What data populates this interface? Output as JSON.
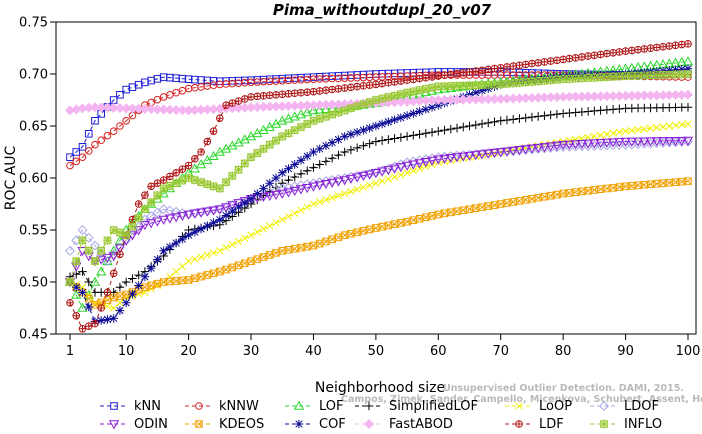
{
  "chart_data": {
    "type": "line",
    "title": "Pima_withoutdupl_20_v07",
    "xlabel": "Neighborhood size",
    "ylabel": "ROC AUC",
    "xlim": [
      1,
      100
    ],
    "ylim": [
      0.45,
      0.75
    ],
    "xticks": [
      1,
      10,
      20,
      30,
      40,
      50,
      60,
      70,
      80,
      90,
      100
    ],
    "yticks": [
      0.45,
      0.5,
      0.55,
      0.6,
      0.65,
      0.7,
      0.75
    ],
    "grid": false,
    "legend_position": "bottom",
    "watermark": [
      "Unsupervised Outlier Detection. DAMI, 2015.",
      "Campos, Zimek, Sander, Campello, Micenkova, Schubert, Assent, Houle"
    ],
    "series": [
      {
        "name": "kNN",
        "color": "#1f1fd6",
        "marker": "square",
        "points": [
          [
            1,
            0.62
          ],
          [
            3,
            0.63
          ],
          [
            5,
            0.655
          ],
          [
            8,
            0.675
          ],
          [
            10,
            0.685
          ],
          [
            13,
            0.692
          ],
          [
            16,
            0.697
          ],
          [
            20,
            0.695
          ],
          [
            25,
            0.693
          ],
          [
            30,
            0.694
          ],
          [
            40,
            0.697
          ],
          [
            50,
            0.7
          ],
          [
            60,
            0.702
          ],
          [
            70,
            0.702
          ],
          [
            80,
            0.7
          ],
          [
            90,
            0.699
          ],
          [
            100,
            0.7
          ]
        ]
      },
      {
        "name": "kNNW",
        "color": "#d62020",
        "marker": "circle",
        "points": [
          [
            1,
            0.612
          ],
          [
            3,
            0.62
          ],
          [
            5,
            0.632
          ],
          [
            8,
            0.645
          ],
          [
            10,
            0.655
          ],
          [
            13,
            0.67
          ],
          [
            16,
            0.678
          ],
          [
            20,
            0.686
          ],
          [
            25,
            0.69
          ],
          [
            30,
            0.692
          ],
          [
            40,
            0.695
          ],
          [
            50,
            0.697
          ],
          [
            60,
            0.699
          ],
          [
            70,
            0.699
          ],
          [
            80,
            0.699
          ],
          [
            90,
            0.698
          ],
          [
            100,
            0.697
          ]
        ]
      },
      {
        "name": "LOF",
        "color": "#2ad62a",
        "marker": "triangle",
        "points": [
          [
            1,
            0.5
          ],
          [
            3,
            0.475
          ],
          [
            5,
            0.5
          ],
          [
            7,
            0.52
          ],
          [
            10,
            0.55
          ],
          [
            13,
            0.57
          ],
          [
            16,
            0.585
          ],
          [
            20,
            0.605
          ],
          [
            25,
            0.625
          ],
          [
            30,
            0.64
          ],
          [
            35,
            0.655
          ],
          [
            40,
            0.665
          ],
          [
            45,
            0.668
          ],
          [
            50,
            0.672
          ],
          [
            60,
            0.685
          ],
          [
            70,
            0.692
          ],
          [
            80,
            0.698
          ],
          [
            90,
            0.705
          ],
          [
            100,
            0.712
          ]
        ]
      },
      {
        "name": "SimplifiedLOF",
        "color": "#000000",
        "marker": "plus",
        "points": [
          [
            1,
            0.505
          ],
          [
            3,
            0.51
          ],
          [
            5,
            0.49
          ],
          [
            8,
            0.49
          ],
          [
            10,
            0.5
          ],
          [
            13,
            0.51
          ],
          [
            16,
            0.525
          ],
          [
            20,
            0.55
          ],
          [
            25,
            0.555
          ],
          [
            30,
            0.575
          ],
          [
            35,
            0.595
          ],
          [
            40,
            0.61
          ],
          [
            45,
            0.625
          ],
          [
            50,
            0.635
          ],
          [
            55,
            0.64
          ],
          [
            60,
            0.645
          ],
          [
            70,
            0.655
          ],
          [
            80,
            0.662
          ],
          [
            90,
            0.667
          ],
          [
            100,
            0.668
          ]
        ]
      },
      {
        "name": "LoOP",
        "color": "#f0f000",
        "marker": "x",
        "points": [
          [
            1,
            0.5
          ],
          [
            3,
            0.495
          ],
          [
            5,
            0.48
          ],
          [
            8,
            0.475
          ],
          [
            10,
            0.485
          ],
          [
            13,
            0.49
          ],
          [
            16,
            0.5
          ],
          [
            20,
            0.52
          ],
          [
            25,
            0.53
          ],
          [
            30,
            0.545
          ],
          [
            35,
            0.56
          ],
          [
            40,
            0.575
          ],
          [
            45,
            0.585
          ],
          [
            50,
            0.595
          ],
          [
            55,
            0.605
          ],
          [
            60,
            0.615
          ],
          [
            70,
            0.625
          ],
          [
            80,
            0.635
          ],
          [
            90,
            0.645
          ],
          [
            100,
            0.652
          ]
        ]
      },
      {
        "name": "LDOF",
        "color": "#a8a8e6",
        "marker": "diamond",
        "points": [
          [
            1,
            0.53
          ],
          [
            3,
            0.55
          ],
          [
            5,
            0.535
          ],
          [
            7,
            0.52
          ],
          [
            10,
            0.54
          ],
          [
            13,
            0.56
          ],
          [
            16,
            0.57
          ],
          [
            20,
            0.565
          ],
          [
            25,
            0.57
          ],
          [
            30,
            0.58
          ],
          [
            35,
            0.59
          ],
          [
            40,
            0.595
          ],
          [
            45,
            0.6
          ],
          [
            50,
            0.605
          ],
          [
            55,
            0.615
          ],
          [
            60,
            0.62
          ],
          [
            70,
            0.625
          ],
          [
            80,
            0.63
          ],
          [
            90,
            0.632
          ],
          [
            100,
            0.635
          ]
        ]
      },
      {
        "name": "ODIN",
        "color": "#8a1ed6",
        "marker": "triangle-down",
        "points": [
          [
            1,
            0.5
          ],
          [
            3,
            0.53
          ],
          [
            5,
            0.52
          ],
          [
            8,
            0.525
          ],
          [
            10,
            0.54
          ],
          [
            13,
            0.555
          ],
          [
            16,
            0.56
          ],
          [
            20,
            0.565
          ],
          [
            25,
            0.57
          ],
          [
            30,
            0.58
          ],
          [
            35,
            0.585
          ],
          [
            40,
            0.592
          ],
          [
            45,
            0.598
          ],
          [
            50,
            0.605
          ],
          [
            55,
            0.612
          ],
          [
            60,
            0.618
          ],
          [
            70,
            0.625
          ],
          [
            80,
            0.632
          ],
          [
            90,
            0.635
          ],
          [
            100,
            0.636
          ]
        ]
      },
      {
        "name": "KDEOS",
        "color": "#f0a000",
        "marker": "square-x",
        "points": [
          [
            1,
            0.5
          ],
          [
            3,
            0.49
          ],
          [
            5,
            0.478
          ],
          [
            8,
            0.485
          ],
          [
            10,
            0.488
          ],
          [
            13,
            0.495
          ],
          [
            16,
            0.5
          ],
          [
            20,
            0.502
          ],
          [
            25,
            0.51
          ],
          [
            30,
            0.52
          ],
          [
            35,
            0.53
          ],
          [
            40,
            0.535
          ],
          [
            45,
            0.545
          ],
          [
            50,
            0.552
          ],
          [
            55,
            0.558
          ],
          [
            60,
            0.565
          ],
          [
            70,
            0.575
          ],
          [
            80,
            0.585
          ],
          [
            90,
            0.592
          ],
          [
            100,
            0.597
          ]
        ]
      },
      {
        "name": "COF",
        "color": "#0a0a96",
        "marker": "asterisk",
        "points": [
          [
            1,
            0.5
          ],
          [
            3,
            0.49
          ],
          [
            5,
            0.462
          ],
          [
            8,
            0.465
          ],
          [
            10,
            0.48
          ],
          [
            13,
            0.505
          ],
          [
            16,
            0.53
          ],
          [
            20,
            0.545
          ],
          [
            25,
            0.56
          ],
          [
            30,
            0.58
          ],
          [
            35,
            0.605
          ],
          [
            40,
            0.625
          ],
          [
            45,
            0.64
          ],
          [
            50,
            0.65
          ],
          [
            55,
            0.66
          ],
          [
            60,
            0.67
          ],
          [
            65,
            0.68
          ],
          [
            70,
            0.69
          ],
          [
            80,
            0.697
          ],
          [
            90,
            0.7
          ],
          [
            100,
            0.705
          ]
        ]
      },
      {
        "name": "FastABOD",
        "color": "#f4b4f0",
        "marker": "diamond-filled",
        "points": [
          [
            1,
            0.665
          ],
          [
            3,
            0.667
          ],
          [
            5,
            0.668
          ],
          [
            10,
            0.667
          ],
          [
            20,
            0.665
          ],
          [
            30,
            0.668
          ],
          [
            40,
            0.67
          ],
          [
            50,
            0.672
          ],
          [
            60,
            0.675
          ],
          [
            70,
            0.676
          ],
          [
            80,
            0.678
          ],
          [
            90,
            0.679
          ],
          [
            100,
            0.68
          ]
        ]
      },
      {
        "name": "LDF",
        "color": "#b01818",
        "marker": "circle-plus",
        "points": [
          [
            1,
            0.48
          ],
          [
            3,
            0.455
          ],
          [
            5,
            0.46
          ],
          [
            7,
            0.49
          ],
          [
            10,
            0.545
          ],
          [
            12,
            0.575
          ],
          [
            14,
            0.592
          ],
          [
            16,
            0.598
          ],
          [
            18,
            0.605
          ],
          [
            20,
            0.612
          ],
          [
            22,
            0.625
          ],
          [
            24,
            0.645
          ],
          [
            26,
            0.67
          ],
          [
            30,
            0.678
          ],
          [
            40,
            0.683
          ],
          [
            50,
            0.69
          ],
          [
            60,
            0.698
          ],
          [
            70,
            0.706
          ],
          [
            80,
            0.714
          ],
          [
            90,
            0.722
          ],
          [
            100,
            0.729
          ]
        ]
      },
      {
        "name": "INFLO",
        "color": "#9ac832",
        "marker": "hash",
        "points": [
          [
            1,
            0.5
          ],
          [
            3,
            0.54
          ],
          [
            5,
            0.52
          ],
          [
            8,
            0.55
          ],
          [
            10,
            0.545
          ],
          [
            13,
            0.57
          ],
          [
            16,
            0.59
          ],
          [
            20,
            0.6
          ],
          [
            25,
            0.59
          ],
          [
            30,
            0.62
          ],
          [
            35,
            0.64
          ],
          [
            40,
            0.655
          ],
          [
            45,
            0.665
          ],
          [
            50,
            0.675
          ],
          [
            55,
            0.682
          ],
          [
            60,
            0.688
          ],
          [
            70,
            0.69
          ],
          [
            80,
            0.695
          ],
          [
            90,
            0.698
          ],
          [
            100,
            0.7
          ]
        ]
      }
    ]
  }
}
